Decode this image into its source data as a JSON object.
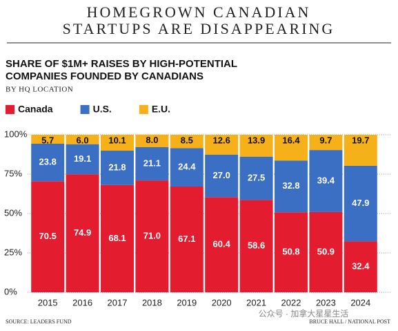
{
  "chart_data": {
    "type": "stacked_bar",
    "title": [
      "HOMEGROWN CANADIAN",
      "STARTUPS ARE DISAPPEARING"
    ],
    "subtitle": [
      "SHARE OF $1M+ RAISES BY HIGH-POTENTIAL",
      "COMPANIES FOUNDED BY CANADIANS"
    ],
    "subtitle2": "BY HQ LOCATION",
    "categories": [
      "2015",
      "2016",
      "2017",
      "2018",
      "2019",
      "2020",
      "2021",
      "2022",
      "2023",
      "2024"
    ],
    "series": [
      {
        "name": "Canada",
        "color": "#e31d2f",
        "values": [
          70.5,
          74.9,
          68.1,
          71,
          67.1,
          60.4,
          58.6,
          50.8,
          50.9,
          32.4
        ],
        "value_labels": [
          "70.5",
          "74.9",
          "68.1",
          "71.0",
          "67.1",
          "60.4",
          "58.6",
          "50.8",
          "50.9",
          "32.4"
        ]
      },
      {
        "name": "U.S.",
        "color": "#3a6fc4",
        "values": [
          23.8,
          19.1,
          21.8,
          21.1,
          24.4,
          27,
          27.5,
          32.8,
          39.4,
          47.9
        ],
        "value_labels": [
          "23.8",
          "19.1",
          "21.8",
          "21.1",
          "24.4",
          "27.0",
          "27.5",
          "32.8",
          "39.4",
          "47.9"
        ]
      },
      {
        "name": "E.U.",
        "color": "#f5b01a",
        "values": [
          5.7,
          6,
          10.1,
          8,
          8.5,
          12.6,
          13.9,
          16.4,
          9.7,
          19.7
        ],
        "value_labels": [
          "5.7",
          "6.0",
          "10.1",
          "8.0",
          "8.5",
          "12.6",
          "13.9",
          "16.4",
          "9.7",
          "19.7"
        ]
      }
    ],
    "ylim": [
      0,
      100
    ],
    "yticks": [
      {
        "value": 0,
        "label": "0%"
      },
      {
        "value": 25,
        "label": "25%"
      },
      {
        "value": 50,
        "label": "50%"
      },
      {
        "value": 75,
        "label": "75%"
      },
      {
        "value": 100,
        "label": "100%"
      }
    ],
    "grid": true,
    "source": "SOURCE: LEADERS FUND",
    "credit": "BRUCE HALL / NATIONAL POST",
    "watermark": "公众号 · 加拿大星星生活"
  }
}
